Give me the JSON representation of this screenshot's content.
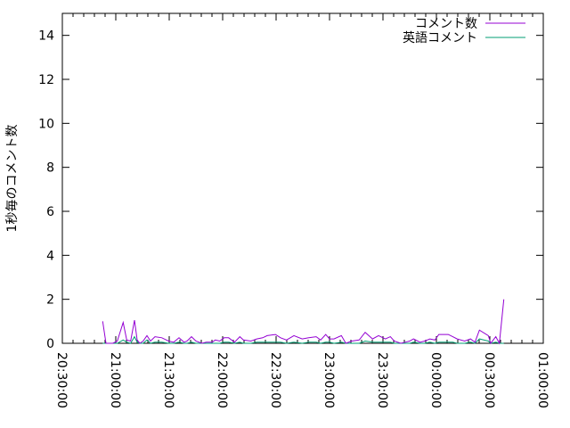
{
  "chart_data": {
    "type": "line",
    "title": "",
    "xlabel": "",
    "ylabel": "1秒毎のコメント数",
    "xlim": [
      "20:30:00",
      "01:00:00"
    ],
    "ylim": [
      0,
      15
    ],
    "x_tick_labels": [
      "20:30:00",
      "21:00:00",
      "21:30:00",
      "22:00:00",
      "22:30:00",
      "23:00:00",
      "23:30:00",
      "00:00:00",
      "00:30:00",
      "01:00:00"
    ],
    "y_tick_labels": [
      "0",
      "2",
      "4",
      "6",
      "8",
      "10",
      "12",
      "14"
    ],
    "grid": false,
    "legend_position": "top-right",
    "x": [
      "20:52:40",
      "20:54:30",
      "20:58:20",
      "21:00:50",
      "21:04:10",
      "21:06:10",
      "21:08:20",
      "21:10:30",
      "21:12:00",
      "21:13:30",
      "21:15:20",
      "21:17:30",
      "21:19:30",
      "21:22:00",
      "21:25:50",
      "21:29:40",
      "21:32:30",
      "21:35:30",
      "21:38:20",
      "21:40:00",
      "21:42:30",
      "21:45:00",
      "21:48:20",
      "21:50:50",
      "21:54:10",
      "21:55:50",
      "21:58:20",
      "22:00:50",
      "22:03:20",
      "22:06:40",
      "22:09:40",
      "22:11:40",
      "22:15:50",
      "22:19:10",
      "22:22:30",
      "22:25:00",
      "22:29:40",
      "22:32:30",
      "22:35:50",
      "22:40:00",
      "22:44:40",
      "22:48:20",
      "22:52:30",
      "22:55:00",
      "22:57:50",
      "23:00:00",
      "23:02:30",
      "23:06:40",
      "23:09:10",
      "23:12:30",
      "23:16:40",
      "23:20:00",
      "23:24:10",
      "23:27:30",
      "23:31:20",
      "23:34:10",
      "23:36:20",
      "23:40:00",
      "23:42:30",
      "23:45:00",
      "23:47:10",
      "23:50:50",
      "23:53:20",
      "23:56:20",
      "23:59:10",
      "00:01:20",
      "00:06:40",
      "00:09:10",
      "00:11:40",
      "00:15:50",
      "00:19:10",
      "00:21:40",
      "00:24:10",
      "00:29:10",
      "00:30:30",
      "00:33:20",
      "00:35:20",
      "00:37:50"
    ],
    "series": [
      {
        "name": "コメント数",
        "color": "#9400d3",
        "values": [
          1.0,
          0,
          0,
          0.1,
          0.95,
          0.15,
          0.1,
          1.05,
          0.15,
          0,
          0.1,
          0.35,
          0.1,
          0.3,
          0.25,
          0.1,
          0.05,
          0.25,
          0.05,
          0.1,
          0.3,
          0.1,
          0,
          0.05,
          0.05,
          0.15,
          0.1,
          0.25,
          0.25,
          0.05,
          0.3,
          0.15,
          0.1,
          0.2,
          0.25,
          0.35,
          0.4,
          0.25,
          0.15,
          0.35,
          0.2,
          0.25,
          0.3,
          0.15,
          0.4,
          0.2,
          0.2,
          0.35,
          0,
          0.1,
          0.15,
          0.5,
          0.2,
          0.35,
          0.2,
          0.3,
          0.1,
          0,
          0.05,
          0.1,
          0.2,
          0.05,
          0.1,
          0.2,
          0.15,
          0.4,
          0.4,
          0.3,
          0.2,
          0.1,
          0.2,
          0.05,
          0.6,
          0.35,
          0,
          0.3,
          0,
          2.0
        ]
      },
      {
        "name": "英語コメント",
        "color": "#009e73",
        "values": [
          0,
          0,
          0,
          0,
          0.15,
          0.05,
          0,
          0.3,
          0.05,
          0,
          0,
          0.15,
          0,
          0.05,
          0.05,
          0,
          0,
          0.05,
          0,
          0,
          0.05,
          0,
          0,
          0,
          0,
          0,
          0,
          0.05,
          0.05,
          0,
          0.05,
          0,
          0,
          0.05,
          0.05,
          0.05,
          0.05,
          0.05,
          0,
          0.05,
          0,
          0.05,
          0.05,
          0,
          0.05,
          0.05,
          0,
          0.05,
          0,
          0,
          0,
          0.1,
          0.05,
          0.05,
          0.05,
          0.05,
          0,
          0,
          0,
          0,
          0.05,
          0,
          0,
          0.05,
          0,
          0.05,
          0.05,
          0.05,
          0,
          0,
          0.05,
          0,
          0.2,
          0.1,
          0,
          0.05,
          0,
          0
        ]
      }
    ]
  }
}
